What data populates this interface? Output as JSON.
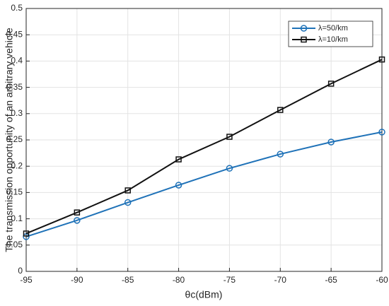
{
  "chart_data": {
    "type": "line",
    "x_label": "θc(dBm)",
    "y_label": "The transmission opportunity of an arbitrary vehicle",
    "x": [
      -95,
      -90,
      -85,
      -80,
      -75,
      -70,
      -65,
      -60
    ],
    "series": [
      {
        "name": "λ=50/km",
        "color": "#1f72b8",
        "marker": "circle",
        "values": [
          0.066,
          0.097,
          0.131,
          0.164,
          0.196,
          0.223,
          0.246,
          0.265
        ]
      },
      {
        "name": "λ=10/km",
        "color": "#111111",
        "marker": "square",
        "values": [
          0.072,
          0.112,
          0.154,
          0.213,
          0.256,
          0.307,
          0.357,
          0.403
        ]
      }
    ],
    "xlim": [
      -95,
      -60
    ],
    "xticks": [
      -95,
      -90,
      -85,
      -80,
      -75,
      -70,
      -65,
      -60
    ],
    "ylim": [
      0,
      0.5
    ],
    "yticks": [
      0,
      0.05,
      0.1,
      0.15,
      0.2,
      0.25,
      0.3,
      0.35,
      0.4,
      0.45,
      0.5
    ],
    "grid": true,
    "legend": "upper right"
  }
}
